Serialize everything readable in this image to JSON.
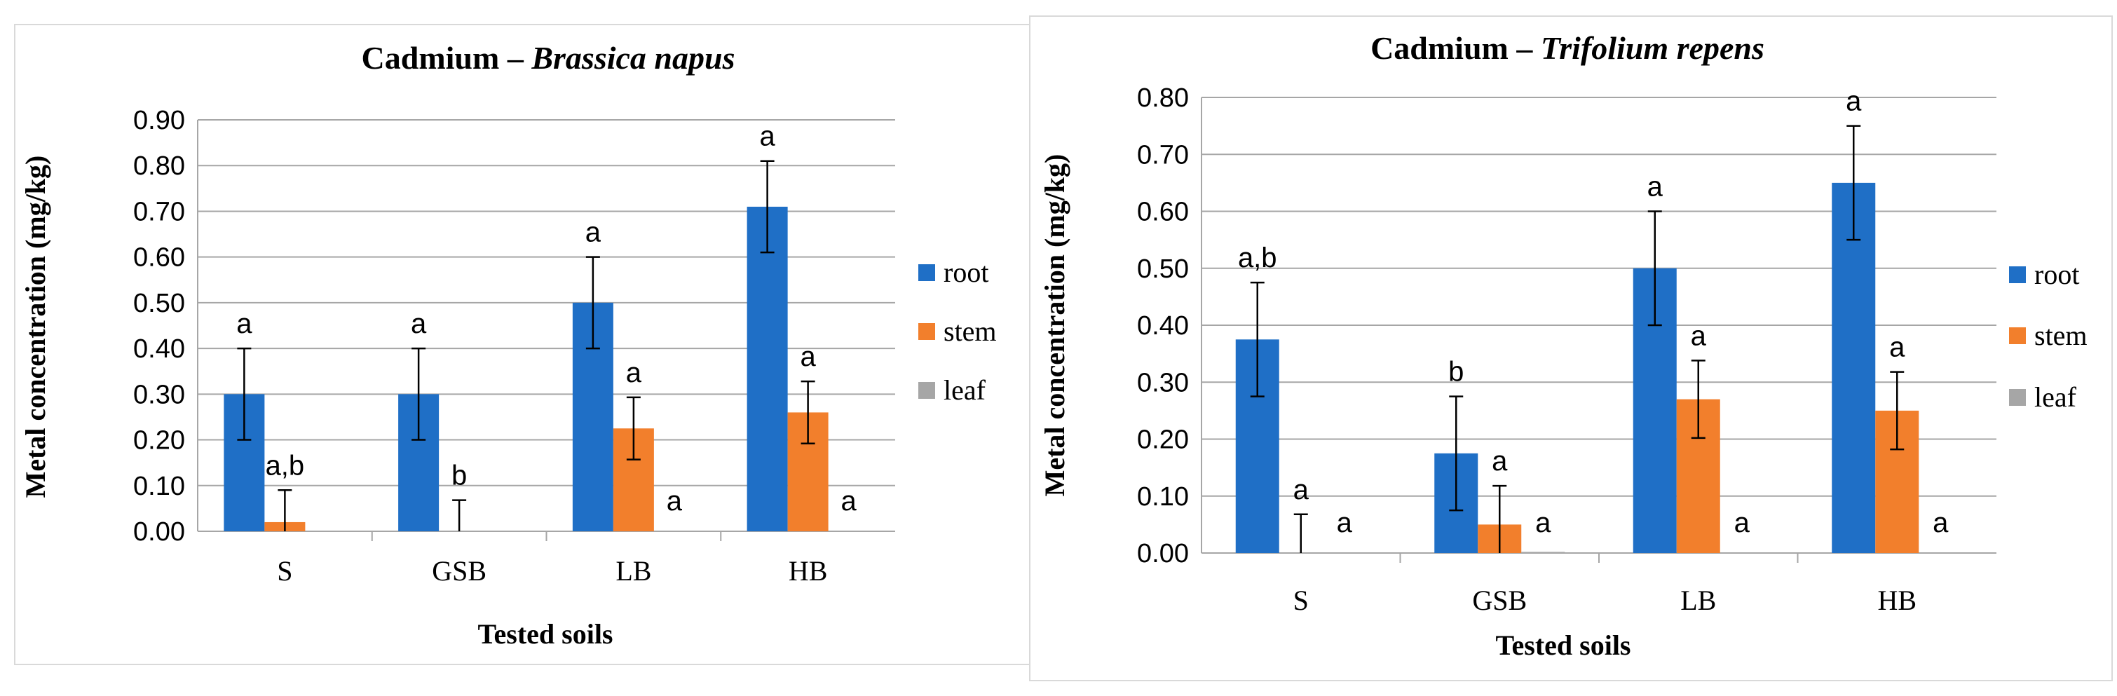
{
  "chart_data": [
    {
      "type": "bar",
      "title_prefix": "Cadmium – ",
      "title_species": "Brassica napus",
      "xlabel": "Tested soils",
      "ylabel": "Metal concentration (mg/kg)",
      "categories": [
        "S",
        "GSB",
        "LB",
        "HB"
      ],
      "ylim": [
        0,
        0.9
      ],
      "ytick_step": 0.1,
      "yticks": [
        "0.00",
        "0.10",
        "0.20",
        "0.30",
        "0.40",
        "0.50",
        "0.60",
        "0.70",
        "0.80",
        "0.90"
      ],
      "grid": true,
      "legend_position": "right",
      "series": [
        {
          "name": "root",
          "color": "#1f6fc6",
          "values": [
            0.3,
            0.3,
            0.5,
            0.71
          ],
          "errors": [
            0.1,
            0.1,
            0.1,
            0.1
          ],
          "labels": [
            "a",
            "a",
            "a",
            "a"
          ]
        },
        {
          "name": "stem",
          "color": "#f27f2c",
          "values": [
            0.02,
            0.0,
            0.225,
            0.26
          ],
          "errors": [
            0.07,
            0.068,
            0.068,
            0.068
          ],
          "labels": [
            "a,b",
            "b",
            "a",
            "a"
          ]
        },
        {
          "name": "leaf",
          "color": "#a6a6a6",
          "values": [
            0.0,
            0.0,
            0.0,
            0.0
          ],
          "errors": [
            0,
            0,
            0,
            0
          ],
          "labels": [
            "",
            "",
            "a",
            "a"
          ]
        }
      ]
    },
    {
      "type": "bar",
      "title_prefix": "Cadmium – ",
      "title_species": "Trifolium repens",
      "xlabel": "Tested soils",
      "ylabel": "Metal concentration (mg/kg)",
      "categories": [
        "S",
        "GSB",
        "LB",
        "HB"
      ],
      "ylim": [
        0,
        0.8
      ],
      "ytick_step": 0.1,
      "yticks": [
        "0.00",
        "0.10",
        "0.20",
        "0.30",
        "0.40",
        "0.50",
        "0.60",
        "0.70",
        "0.80"
      ],
      "grid": true,
      "legend_position": "right",
      "series": [
        {
          "name": "root",
          "color": "#1f6fc6",
          "values": [
            0.375,
            0.175,
            0.5,
            0.65
          ],
          "errors": [
            0.1,
            0.1,
            0.1,
            0.1
          ],
          "labels": [
            "a,b",
            "b",
            "a",
            "a"
          ]
        },
        {
          "name": "stem",
          "color": "#f27f2c",
          "values": [
            0.0,
            0.05,
            0.27,
            0.25
          ],
          "errors": [
            0.068,
            0.068,
            0.068,
            0.068
          ],
          "labels": [
            "a",
            "a",
            "a",
            "a"
          ]
        },
        {
          "name": "leaf",
          "color": "#a6a6a6",
          "values": [
            0.0,
            0.002,
            0.0,
            0.0
          ],
          "errors": [
            0,
            0,
            0,
            0
          ],
          "labels": [
            "a",
            "a",
            "a",
            "a"
          ]
        }
      ]
    }
  ]
}
